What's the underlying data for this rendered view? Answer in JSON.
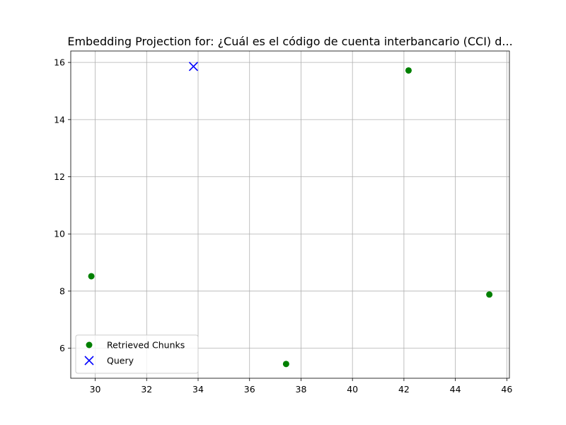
{
  "chart_data": {
    "type": "scatter",
    "title": "Embedding Projection for: ¿Cuál es el código de cuenta interbancario (CCI) d...",
    "xlabel": "",
    "ylabel": "",
    "xlim": [
      29.05,
      46.1
    ],
    "ylim": [
      4.95,
      16.4
    ],
    "xticks": [
      30,
      32,
      34,
      36,
      38,
      40,
      42,
      44,
      46
    ],
    "yticks": [
      6,
      8,
      10,
      12,
      14,
      16
    ],
    "grid": true,
    "legend_position": "lower-left",
    "series": [
      {
        "name": "Retrieved Chunks",
        "marker": "circle",
        "color": "#008000",
        "points": [
          {
            "x": 29.85,
            "y": 8.52
          },
          {
            "x": 37.42,
            "y": 5.45
          },
          {
            "x": 42.18,
            "y": 15.72
          },
          {
            "x": 45.32,
            "y": 7.88
          }
        ]
      },
      {
        "name": "Query",
        "marker": "x",
        "color": "#0000ff",
        "points": [
          {
            "x": 33.82,
            "y": 15.86
          }
        ]
      }
    ]
  }
}
